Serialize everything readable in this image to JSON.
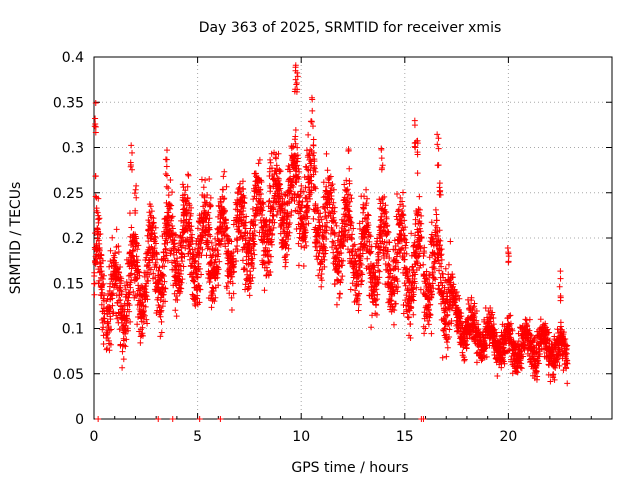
{
  "chart_data": {
    "type": "scatter",
    "title": "Day 363 of 2025, SRMTID for receiver xmis",
    "xlabel": "GPS time / hours",
    "ylabel": "SRMTID / TECUs",
    "xlim": [
      0,
      25
    ],
    "ylim": [
      0,
      0.4
    ],
    "x_ticks": [
      0,
      5,
      10,
      15,
      20
    ],
    "x_tick_labels": [
      "0",
      "5",
      "10",
      "15",
      "20"
    ],
    "y_ticks": [
      0,
      0.05,
      0.1,
      0.15,
      0.2,
      0.25,
      0.3,
      0.35,
      0.4
    ],
    "y_tick_labels": [
      "0",
      "0.05",
      "0.1",
      "0.15",
      "0.2",
      "0.25",
      "0.3",
      "0.35",
      "0.4"
    ],
    "grid": true,
    "marker": "+",
    "color": "#ff0000",
    "trend": [
      {
        "x": 0.0,
        "y": 0.16
      },
      {
        "x": 1.0,
        "y": 0.13
      },
      {
        "x": 2.0,
        "y": 0.15
      },
      {
        "x": 3.0,
        "y": 0.17
      },
      {
        "x": 4.0,
        "y": 0.19
      },
      {
        "x": 5.0,
        "y": 0.19
      },
      {
        "x": 6.0,
        "y": 0.19
      },
      {
        "x": 7.0,
        "y": 0.2
      },
      {
        "x": 8.0,
        "y": 0.21
      },
      {
        "x": 9.0,
        "y": 0.24
      },
      {
        "x": 10.0,
        "y": 0.25
      },
      {
        "x": 11.0,
        "y": 0.22
      },
      {
        "x": 12.0,
        "y": 0.2
      },
      {
        "x": 13.0,
        "y": 0.18
      },
      {
        "x": 14.0,
        "y": 0.18
      },
      {
        "x": 15.0,
        "y": 0.17
      },
      {
        "x": 16.0,
        "y": 0.17
      },
      {
        "x": 17.0,
        "y": 0.15
      },
      {
        "x": 17.5,
        "y": 0.11
      },
      {
        "x": 18.0,
        "y": 0.1
      },
      {
        "x": 19.0,
        "y": 0.09
      },
      {
        "x": 20.0,
        "y": 0.08
      },
      {
        "x": 21.0,
        "y": 0.08
      },
      {
        "x": 22.0,
        "y": 0.08
      },
      {
        "x": 22.8,
        "y": 0.07
      }
    ],
    "spikes": [
      {
        "x": 0.05,
        "y": 0.355
      },
      {
        "x": 0.1,
        "y": 0.27
      },
      {
        "x": 0.2,
        "y": 0.25
      },
      {
        "x": 1.8,
        "y": 0.31
      },
      {
        "x": 2.0,
        "y": 0.26
      },
      {
        "x": 3.5,
        "y": 0.3
      },
      {
        "x": 4.3,
        "y": 0.26
      },
      {
        "x": 5.6,
        "y": 0.27
      },
      {
        "x": 8.5,
        "y": 0.29
      },
      {
        "x": 9.7,
        "y": 0.4
      },
      {
        "x": 9.8,
        "y": 0.385
      },
      {
        "x": 10.5,
        "y": 0.36
      },
      {
        "x": 10.6,
        "y": 0.33
      },
      {
        "x": 12.3,
        "y": 0.3
      },
      {
        "x": 13.9,
        "y": 0.31
      },
      {
        "x": 15.5,
        "y": 0.33
      },
      {
        "x": 15.6,
        "y": 0.31
      },
      {
        "x": 16.6,
        "y": 0.315
      },
      {
        "x": 16.7,
        "y": 0.28
      },
      {
        "x": 20.0,
        "y": 0.2
      },
      {
        "x": 22.5,
        "y": 0.17
      }
    ],
    "zero_points": [
      0.2,
      3.1,
      3.8,
      5.1,
      6.1,
      15.8,
      15.9
    ],
    "gap_hours": [
      0.55,
      6.8,
      10.55,
      15.85
    ]
  }
}
